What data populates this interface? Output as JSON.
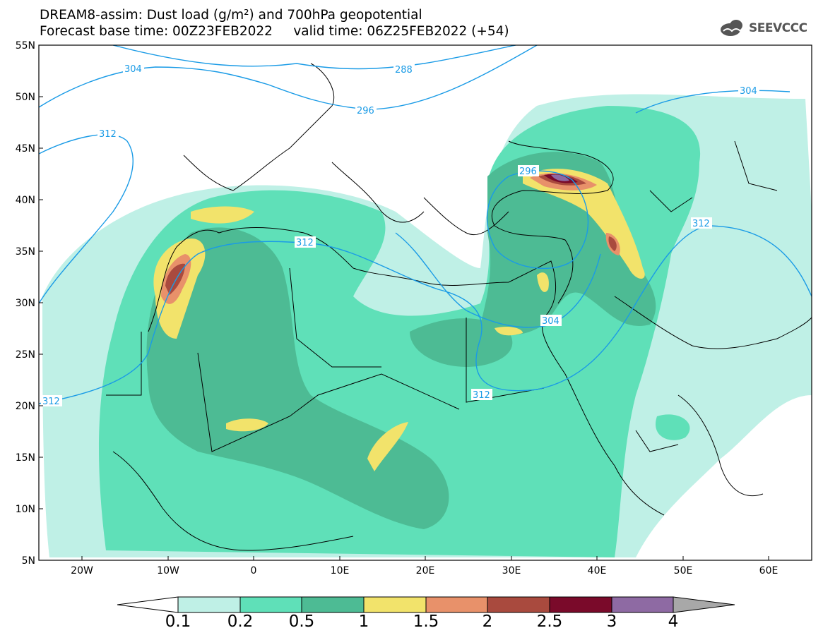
{
  "title": {
    "line1": "DREAM8-assim: Dust load (g/m²) and 700hPa geopotential",
    "line2": "Forecast base time: 00Z23FEB2022     valid time: 06Z25FEB2022 (+54)"
  },
  "logo": {
    "text": "SEEVCCC",
    "icon": "cloud-icon"
  },
  "axes": {
    "lat_labels": [
      "55N",
      "50N",
      "45N",
      "40N",
      "35N",
      "30N",
      "25N",
      "20N",
      "15N",
      "10N",
      "5N"
    ],
    "lon_labels": [
      "20W",
      "10W",
      "0",
      "10E",
      "20E",
      "30E",
      "40E",
      "50E",
      "60E"
    ],
    "lon_range": [
      -25,
      65
    ],
    "lat_range": [
      5,
      55
    ]
  },
  "contour_labels": [
    "304",
    "288",
    "296",
    "312",
    "312",
    "304",
    "296",
    "312",
    "312",
    "304",
    "312"
  ],
  "colorbar": {
    "ticks": [
      "0.1",
      "0.2",
      "0.5",
      "1",
      "1.5",
      "2",
      "2.5",
      "3",
      "4"
    ],
    "colors": [
      "#bff0e6",
      "#5fe0b8",
      "#4dbb94",
      "#f2e36b",
      "#e8916a",
      "#a94a3e",
      "#7a0a2a",
      "#8e6aa3"
    ],
    "left_arrow_color": "#ffffff",
    "right_arrow_color": "#a8a8a8"
  },
  "colors": {
    "contour": "#1a9be6",
    "coast": "#000000"
  }
}
